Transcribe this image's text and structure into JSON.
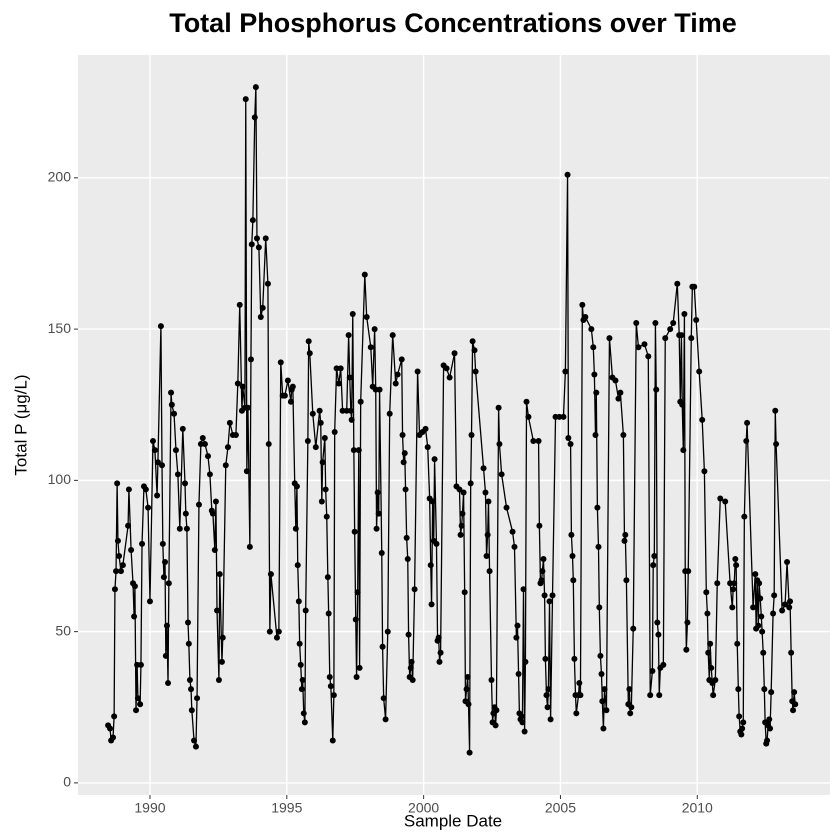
{
  "chart_data": {
    "type": "line",
    "title": "Total Phosphorus Concentrations over Time",
    "x_label": "Sample Date",
    "y_label": "Total P (μg/L)",
    "xlim": [
      1987.37,
      2014.85
    ],
    "ylim": [
      -4,
      240.6
    ],
    "xticks": [
      1990,
      1995,
      2000,
      2005,
      2010
    ],
    "yticks": [
      0,
      50,
      100,
      150,
      200
    ],
    "grid": true,
    "series": [
      {
        "name": "Total P",
        "color": "#000000",
        "x": [
          1988.47,
          1988.54,
          1988.58,
          1988.65,
          1988.69,
          1988.72,
          1988.76,
          1988.8,
          1988.83,
          1988.87,
          1988.94,
          1989.01,
          1989.2,
          1989.23,
          1989.31,
          1989.38,
          1989.42,
          1989.45,
          1989.49,
          1989.53,
          1989.56,
          1989.64,
          1989.67,
          1989.71,
          1989.78,
          1989.85,
          1989.93,
          1990.0,
          1990.11,
          1990.18,
          1990.26,
          1990.29,
          1990.4,
          1990.44,
          1990.47,
          1990.51,
          1990.55,
          1990.58,
          1990.62,
          1990.66,
          1990.69,
          1990.77,
          1990.8,
          1990.88,
          1990.95,
          1991.02,
          1991.09,
          1991.2,
          1991.28,
          1991.31,
          1991.35,
          1991.39,
          1991.42,
          1991.46,
          1991.5,
          1991.53,
          1991.61,
          1991.68,
          1991.72,
          1991.79,
          1991.86,
          1991.93,
          1992.01,
          1992.12,
          1992.19,
          1992.26,
          1992.3,
          1992.37,
          1992.41,
          1992.45,
          1992.52,
          1992.55,
          1992.63,
          1992.66,
          1992.77,
          1992.85,
          1992.92,
          1993.03,
          1993.14,
          1993.21,
          1993.28,
          1993.36,
          1993.39,
          1993.47,
          1993.5,
          1993.54,
          1993.58,
          1993.65,
          1993.69,
          1993.72,
          1993.76,
          1993.83,
          1993.87,
          1993.91,
          1993.98,
          1994.05,
          1994.12,
          1994.23,
          1994.31,
          1994.34,
          1994.38,
          1994.42,
          1994.64,
          1994.71,
          1994.78,
          1994.85,
          1994.93,
          1995.04,
          1995.15,
          1995.18,
          1995.22,
          1995.29,
          1995.33,
          1995.37,
          1995.4,
          1995.44,
          1995.47,
          1995.51,
          1995.55,
          1995.58,
          1995.62,
          1995.66,
          1995.69,
          1995.77,
          1995.8,
          1995.84,
          1995.95,
          1996.06,
          1996.2,
          1996.24,
          1996.28,
          1996.31,
          1996.39,
          1996.42,
          1996.46,
          1996.5,
          1996.53,
          1996.57,
          1996.61,
          1996.68,
          1996.72,
          1996.75,
          1996.82,
          1996.9,
          1996.97,
          1997.04,
          1997.19,
          1997.26,
          1997.3,
          1997.34,
          1997.37,
          1997.41,
          1997.45,
          1997.48,
          1997.52,
          1997.55,
          1997.59,
          1997.63,
          1997.66,
          1997.7,
          1997.85,
          1997.92,
          1998.07,
          1998.14,
          1998.21,
          1998.25,
          1998.28,
          1998.32,
          1998.36,
          1998.39,
          1998.47,
          1998.5,
          1998.54,
          1998.61,
          1998.69,
          1998.76,
          1998.87,
          1998.98,
          1999.05,
          1999.2,
          1999.23,
          1999.27,
          1999.31,
          1999.34,
          1999.38,
          1999.42,
          1999.45,
          1999.49,
          1999.53,
          1999.56,
          1999.6,
          1999.67,
          1999.78,
          1999.85,
          1999.96,
          2000.07,
          2000.15,
          2000.22,
          2000.26,
          2000.29,
          2000.33,
          2000.37,
          2000.4,
          2000.47,
          2000.51,
          2000.55,
          2000.58,
          2000.62,
          2000.73,
          2000.84,
          2000.95,
          2001.13,
          2001.2,
          2001.31,
          2001.35,
          2001.39,
          2001.42,
          2001.46,
          2001.5,
          2001.53,
          2001.57,
          2001.61,
          2001.64,
          2001.68,
          2001.72,
          2001.75,
          2001.79,
          2001.86,
          2001.9,
          2002.19,
          2002.26,
          2002.3,
          2002.34,
          2002.37,
          2002.41,
          2002.48,
          2002.52,
          2002.55,
          2002.59,
          2002.63,
          2002.66,
          2002.74,
          2002.77,
          2002.85,
          2003.03,
          2003.25,
          2003.32,
          2003.39,
          2003.43,
          2003.47,
          2003.5,
          2003.54,
          2003.58,
          2003.61,
          2003.65,
          2003.69,
          2003.72,
          2003.76,
          2003.83,
          2004.01,
          2004.2,
          2004.23,
          2004.27,
          2004.31,
          2004.34,
          2004.38,
          2004.42,
          2004.45,
          2004.49,
          2004.53,
          2004.56,
          2004.6,
          2004.64,
          2004.71,
          2004.82,
          2004.96,
          2005.11,
          2005.18,
          2005.26,
          2005.29,
          2005.37,
          2005.4,
          2005.44,
          2005.47,
          2005.51,
          2005.55,
          2005.58,
          2005.66,
          2005.69,
          2005.73,
          2005.8,
          2005.84,
          2005.91,
          2006.13,
          2006.2,
          2006.24,
          2006.28,
          2006.31,
          2006.35,
          2006.39,
          2006.42,
          2006.46,
          2006.5,
          2006.53,
          2006.57,
          2006.61,
          2006.68,
          2006.79,
          2006.9,
          2007.01,
          2007.12,
          2007.19,
          2007.3,
          2007.34,
          2007.37,
          2007.41,
          2007.48,
          2007.52,
          2007.55,
          2007.59,
          2007.66,
          2007.77,
          2007.85,
          2008.07,
          2008.21,
          2008.28,
          2008.36,
          2008.39,
          2008.43,
          2008.47,
          2008.5,
          2008.54,
          2008.58,
          2008.61,
          2008.65,
          2008.76,
          2008.83,
          2009.01,
          2009.12,
          2009.27,
          2009.34,
          2009.38,
          2009.42,
          2009.45,
          2009.49,
          2009.53,
          2009.56,
          2009.6,
          2009.64,
          2009.67,
          2009.78,
          2009.82,
          2009.89,
          2009.96,
          2010.07,
          2010.18,
          2010.26,
          2010.33,
          2010.37,
          2010.4,
          2010.44,
          2010.47,
          2010.51,
          2010.55,
          2010.58,
          2010.66,
          2010.73,
          2010.84,
          2011.02,
          2011.2,
          2011.28,
          2011.31,
          2011.35,
          2011.39,
          2011.42,
          2011.46,
          2011.5,
          2011.53,
          2011.57,
          2011.61,
          2011.64,
          2011.68,
          2011.72,
          2011.79,
          2011.82,
          2012.04,
          2012.12,
          2012.15,
          2012.19,
          2012.23,
          2012.26,
          2012.3,
          2012.34,
          2012.37,
          2012.41,
          2012.45,
          2012.48,
          2012.52,
          2012.55,
          2012.59,
          2012.63,
          2012.66,
          2012.7,
          2012.77,
          2012.81,
          2012.85,
          2012.88,
          2013.1,
          2013.21,
          2013.28,
          2013.36,
          2013.39,
          2013.43,
          2013.47,
          2013.5,
          2013.54,
          2013.58
        ],
        "values": [
          19,
          18,
          14,
          15,
          22,
          64,
          70,
          99,
          80,
          75,
          70,
          72,
          85,
          97,
          77,
          66,
          55,
          65,
          24,
          39,
          28,
          26,
          39,
          79,
          98,
          97,
          91,
          60,
          113,
          110,
          95,
          106,
          151,
          105,
          79,
          68,
          73,
          42,
          52,
          33,
          66,
          129,
          125,
          122,
          110,
          102,
          84,
          117,
          99,
          89,
          84,
          53,
          46,
          34,
          31,
          24,
          14,
          12,
          28,
          92,
          112,
          114,
          112,
          108,
          102,
          90,
          89,
          77,
          93,
          57,
          34,
          69,
          40,
          48,
          105,
          111,
          119,
          115,
          115,
          132,
          158,
          123,
          131,
          124,
          226,
          103,
          124,
          78,
          140,
          178,
          186,
          220,
          230,
          180,
          177,
          154,
          157,
          180,
          165,
          112,
          50,
          69,
          48,
          50,
          139,
          128,
          128,
          133,
          126,
          130,
          131,
          99,
          84,
          98,
          72,
          60,
          46,
          39,
          31,
          34,
          23,
          20,
          57,
          113,
          146,
          142,
          122,
          111,
          123,
          119,
          93,
          106,
          114,
          97,
          88,
          68,
          56,
          35,
          32,
          14,
          29,
          116,
          137,
          132,
          137,
          123,
          123,
          148,
          134,
          123,
          120,
          155,
          110,
          83,
          54,
          35,
          63,
          110,
          38,
          126,
          168,
          154,
          144,
          131,
          150,
          130,
          84,
          96,
          89,
          130,
          76,
          45,
          28,
          21,
          50,
          122,
          148,
          132,
          135,
          140,
          115,
          106,
          109,
          97,
          81,
          74,
          49,
          35,
          38,
          40,
          34,
          64,
          136,
          115,
          116,
          117,
          111,
          94,
          72,
          59,
          93,
          80,
          107,
          79,
          47,
          48,
          40,
          43,
          138,
          137,
          134,
          142,
          98,
          97,
          82,
          85,
          89,
          96,
          63,
          27,
          31,
          35,
          26,
          10,
          99,
          115,
          146,
          143,
          136,
          104,
          96,
          75,
          82,
          93,
          70,
          34,
          20,
          23,
          25,
          19,
          24,
          124,
          112,
          102,
          91,
          83,
          78,
          48,
          52,
          36,
          23,
          21,
          22,
          20,
          64,
          17,
          40,
          126,
          121,
          113,
          113,
          85,
          66,
          67,
          70,
          74,
          62,
          41,
          29,
          25,
          31,
          60,
          21,
          62,
          121,
          121,
          121,
          136,
          201,
          114,
          112,
          82,
          75,
          67,
          41,
          29,
          23,
          29,
          33,
          29,
          158,
          153,
          154,
          150,
          144,
          135,
          115,
          129,
          91,
          78,
          58,
          42,
          36,
          27,
          18,
          31,
          24,
          147,
          134,
          133,
          127,
          129,
          115,
          80,
          82,
          67,
          26,
          31,
          23,
          25,
          51,
          152,
          144,
          145,
          141,
          29,
          37,
          72,
          75,
          152,
          130,
          53,
          49,
          29,
          38,
          39,
          147,
          150,
          152,
          165,
          148,
          126,
          148,
          125,
          110,
          155,
          70,
          44,
          53,
          70,
          147,
          164,
          164,
          153,
          136,
          120,
          103,
          63,
          56,
          43,
          34,
          46,
          38,
          33,
          29,
          34,
          66,
          94,
          93,
          66,
          58,
          64,
          66,
          74,
          72,
          46,
          31,
          22,
          17,
          16,
          18,
          20,
          88,
          113,
          119,
          58,
          69,
          51,
          67,
          52,
          66,
          61,
          55,
          50,
          43,
          31,
          20,
          13,
          14,
          19,
          21,
          18,
          30,
          56,
          62,
          123,
          112,
          57,
          59,
          73,
          58,
          60,
          43,
          27,
          24,
          30,
          26
        ]
      }
    ]
  }
}
